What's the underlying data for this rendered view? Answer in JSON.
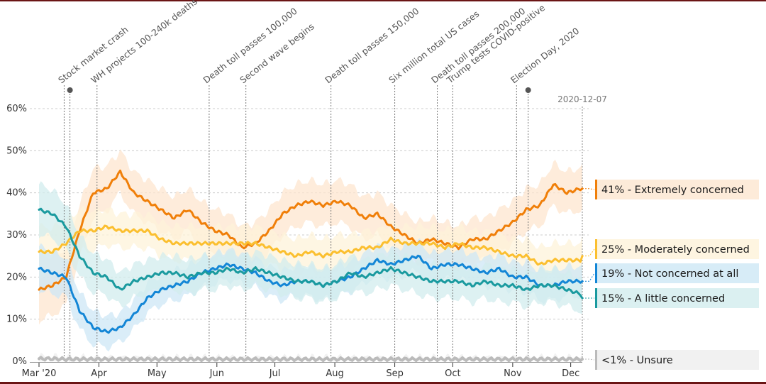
{
  "chart_data": {
    "type": "line",
    "title": "",
    "xlabel": "",
    "ylabel": "",
    "ylim": [
      0,
      60
    ],
    "y_ticks": [
      "0%",
      "10%",
      "20%",
      "30%",
      "40%",
      "50%",
      "60%"
    ],
    "y_tick_values": [
      0,
      10,
      20,
      30,
      40,
      50,
      60
    ],
    "grid": true,
    "x_range": [
      "2020-03-01",
      "2020-12-07"
    ],
    "x_ticks": [
      {
        "label": "Mar '20",
        "date": "2020-03-01"
      },
      {
        "label": "Apr",
        "date": "2020-04-01"
      },
      {
        "label": "May",
        "date": "2020-05-01"
      },
      {
        "label": "Jun",
        "date": "2020-06-01"
      },
      {
        "label": "Jul",
        "date": "2020-07-01"
      },
      {
        "label": "Aug",
        "date": "2020-08-01"
      },
      {
        "label": "Sep",
        "date": "2020-09-01"
      },
      {
        "label": "Oct",
        "date": "2020-10-01"
      },
      {
        "label": "Nov",
        "date": "2020-11-01"
      },
      {
        "label": "Dec",
        "date": "2020-12-01"
      }
    ],
    "end_date_label": "2020-12-07",
    "events": [
      {
        "label": "Stock market crash",
        "day": 13,
        "dot": false
      },
      {
        "label": "",
        "day": 16,
        "dot": true
      },
      {
        "label": "WH projects 100-240k deaths",
        "day": 30,
        "dot": false
      },
      {
        "label": "Death toll passes 100,000",
        "day": 88,
        "dot": false
      },
      {
        "label": "Second wave begins",
        "day": 107,
        "dot": false
      },
      {
        "label": "Death toll passes 150,000",
        "day": 151,
        "dot": false
      },
      {
        "label": "Six million total US cases",
        "day": 184,
        "dot": false
      },
      {
        "label": "Death toll passes 200,000",
        "day": 206,
        "dot": false
      },
      {
        "label": "Trump tests COVID-positive",
        "day": 214,
        "dot": false
      },
      {
        "label": "Election Day, 2020",
        "day": 247,
        "dot": false
      },
      {
        "label": "",
        "day": 253,
        "dot": true
      }
    ],
    "x_days": [
      0,
      7,
      14,
      21,
      28,
      35,
      42,
      49,
      56,
      63,
      70,
      77,
      84,
      91,
      98,
      105,
      112,
      119,
      126,
      133,
      140,
      147,
      154,
      161,
      168,
      175,
      182,
      189,
      196,
      203,
      210,
      217,
      224,
      231,
      238,
      245,
      252,
      259,
      266,
      273,
      280,
      281
    ],
    "series": [
      {
        "name": "Extremely concerned",
        "legend": "41% - Extremely concerned",
        "final": 41,
        "color": "#f07f09",
        "band_color": "#fde6cf",
        "values": [
          17,
          18,
          20,
          31,
          40,
          41,
          45,
          40,
          38,
          36,
          34,
          36,
          33,
          31,
          30,
          27,
          28,
          31,
          35,
          37,
          38,
          37,
          38,
          37,
          34,
          35,
          32,
          30,
          28,
          29,
          28,
          27,
          29,
          29,
          31,
          33,
          36,
          37,
          42,
          40,
          41,
          41
        ],
        "band": 5
      },
      {
        "name": "Moderately concerned",
        "legend": "25% - Moderately concerned",
        "final": 25,
        "color": "#fbbf2f",
        "band_color": "#fef3d9",
        "values": [
          26,
          26,
          28,
          31,
          31,
          32,
          31,
          31,
          31,
          29,
          28,
          28,
          28,
          28,
          28,
          28,
          28,
          27,
          26,
          25,
          26,
          25,
          26,
          26,
          27,
          27,
          29,
          28,
          28,
          28,
          27,
          28,
          27,
          27,
          26,
          25,
          25,
          23,
          24,
          24,
          24,
          25
        ],
        "band": 4
      },
      {
        "name": "Not concerned at all",
        "legend": "19% - Not concerned at all",
        "final": 19,
        "color": "#1386d6",
        "band_color": "#cde7f5",
        "values": [
          22,
          21,
          20,
          12,
          8,
          7,
          8,
          11,
          15,
          17,
          18,
          19,
          21,
          22,
          23,
          22,
          21,
          19,
          18,
          19,
          19,
          18,
          19,
          20,
          22,
          24,
          23,
          24,
          25,
          22,
          23,
          23,
          22,
          21,
          22,
          20,
          20,
          18,
          18,
          19,
          19,
          19
        ],
        "band": 3.5
      },
      {
        "name": "A little concerned",
        "legend": "15% - A little concerned",
        "final": 15,
        "color": "#1a9a9f",
        "band_color": "#d2ecee",
        "values": [
          36,
          35,
          32,
          25,
          21,
          20,
          17,
          19,
          20,
          21,
          21,
          20,
          21,
          21,
          22,
          21,
          22,
          21,
          20,
          19,
          19,
          18,
          19,
          21,
          20,
          21,
          22,
          21,
          20,
          19,
          19,
          19,
          18,
          19,
          18,
          18,
          17,
          18,
          18,
          17,
          16,
          15
        ],
        "band": 4
      },
      {
        "name": "Unsure",
        "legend": "<1% - Unsure",
        "final": 0.5,
        "color": "#bbbbbb",
        "band_color": "#eeeeee",
        "values": [
          0.6,
          0.6,
          0.5,
          0.5,
          0.5,
          0.5,
          0.5,
          0.5,
          0.5,
          0.5,
          0.5,
          0.5,
          0.5,
          0.5,
          0.5,
          0.5,
          0.5,
          0.5,
          0.5,
          0.5,
          0.5,
          0.5,
          0.5,
          0.5,
          0.5,
          0.5,
          0.5,
          0.5,
          0.5,
          0.5,
          0.5,
          0.5,
          0.5,
          0.5,
          0.5,
          0.5,
          0.5,
          0.5,
          0.5,
          0.5,
          0.5,
          0.5
        ],
        "band": 0.3
      }
    ],
    "legend_placement": "right"
  }
}
